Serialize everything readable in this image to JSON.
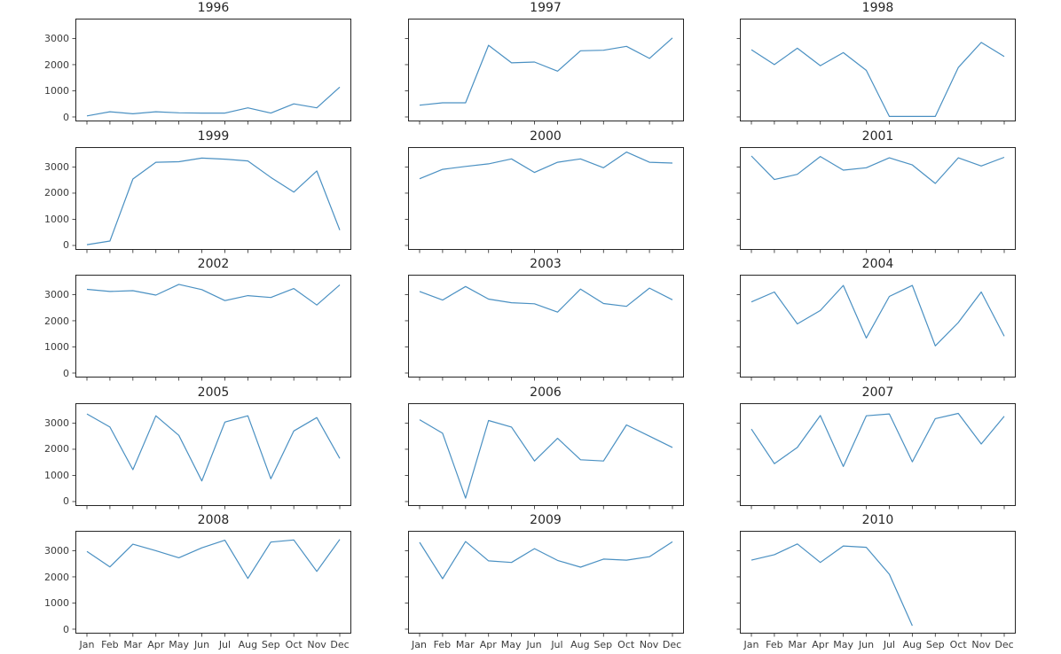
{
  "figure": {
    "background": "#ffffff",
    "line_color": "#4a90c2",
    "axis_color": "#262626",
    "tick_label_color": "#3b3b3b",
    "title_color": "#262626"
  },
  "chart_data": {
    "type": "line",
    "layout": "15 yearly subplots in a 5-row by 3-column grid, shared axes",
    "title": "",
    "xlabel": "",
    "ylabel": "",
    "grid": false,
    "legend": "none",
    "categories": [
      "Jan",
      "Feb",
      "Mar",
      "Apr",
      "May",
      "Jun",
      "Jul",
      "Aug",
      "Sep",
      "Oct",
      "Nov",
      "Dec"
    ],
    "y_ticks": [
      0,
      1000,
      2000,
      3000
    ],
    "ylim": [
      -170,
      3760
    ],
    "x_tick_labels_only_bottom_row": true,
    "y_tick_labels_only_left_column": true,
    "series": [
      {
        "name": "1996",
        "values": [
          40,
          200,
          120,
          200,
          160,
          150,
          150,
          350,
          150,
          500,
          350,
          1140
        ]
      },
      {
        "name": "1997",
        "values": [
          450,
          540,
          540,
          2740,
          2070,
          2100,
          1750,
          2530,
          2550,
          2700,
          2240,
          3020
        ]
      },
      {
        "name": "1998",
        "values": [
          2570,
          2000,
          2630,
          1960,
          2460,
          1780,
          20,
          20,
          20,
          1890,
          2850,
          2310
        ]
      },
      {
        "name": "1999",
        "values": [
          30,
          170,
          2540,
          3180,
          3200,
          3340,
          3300,
          3230,
          2600,
          2040,
          2850,
          590
        ]
      },
      {
        "name": "2000",
        "values": [
          2550,
          2910,
          3020,
          3120,
          3310,
          2790,
          3180,
          3310,
          2970,
          3570,
          3180,
          3150
        ]
      },
      {
        "name": "2001",
        "values": [
          3420,
          2520,
          2720,
          3400,
          2880,
          2970,
          3350,
          3080,
          2370,
          3350,
          3040,
          3370
        ]
      },
      {
        "name": "2002",
        "values": [
          3200,
          3120,
          3150,
          2980,
          3390,
          3190,
          2770,
          2960,
          2890,
          3230,
          2600,
          3370
        ]
      },
      {
        "name": "2003",
        "values": [
          3120,
          2790,
          3310,
          2830,
          2690,
          2650,
          2330,
          3210,
          2660,
          2550,
          3250,
          2800
        ]
      },
      {
        "name": "2004",
        "values": [
          2720,
          3100,
          1880,
          2390,
          3350,
          1340,
          2930,
          3350,
          1040,
          1930,
          3100,
          1410
        ]
      },
      {
        "name": "2005",
        "values": [
          3350,
          2850,
          1220,
          3280,
          2530,
          790,
          3040,
          3280,
          870,
          2700,
          3210,
          1650
        ]
      },
      {
        "name": "2006",
        "values": [
          3130,
          2610,
          130,
          3100,
          2850,
          1550,
          2420,
          1600,
          1550,
          2930,
          2500,
          2070
        ]
      },
      {
        "name": "2007",
        "values": [
          2770,
          1450,
          2070,
          3290,
          1340,
          3280,
          3350,
          1520,
          3170,
          3370,
          2200,
          3260
        ]
      },
      {
        "name": "2008",
        "values": [
          2970,
          2380,
          3250,
          3000,
          2730,
          3110,
          3400,
          1940,
          3330,
          3410,
          2210,
          3430
        ]
      },
      {
        "name": "2009",
        "values": [
          3320,
          1930,
          3350,
          2610,
          2550,
          3080,
          2630,
          2370,
          2680,
          2640,
          2770,
          3340
        ]
      },
      {
        "name": "2010",
        "values": [
          2640,
          2850,
          3260,
          2550,
          3180,
          3130,
          2100,
          130
        ]
      }
    ]
  }
}
